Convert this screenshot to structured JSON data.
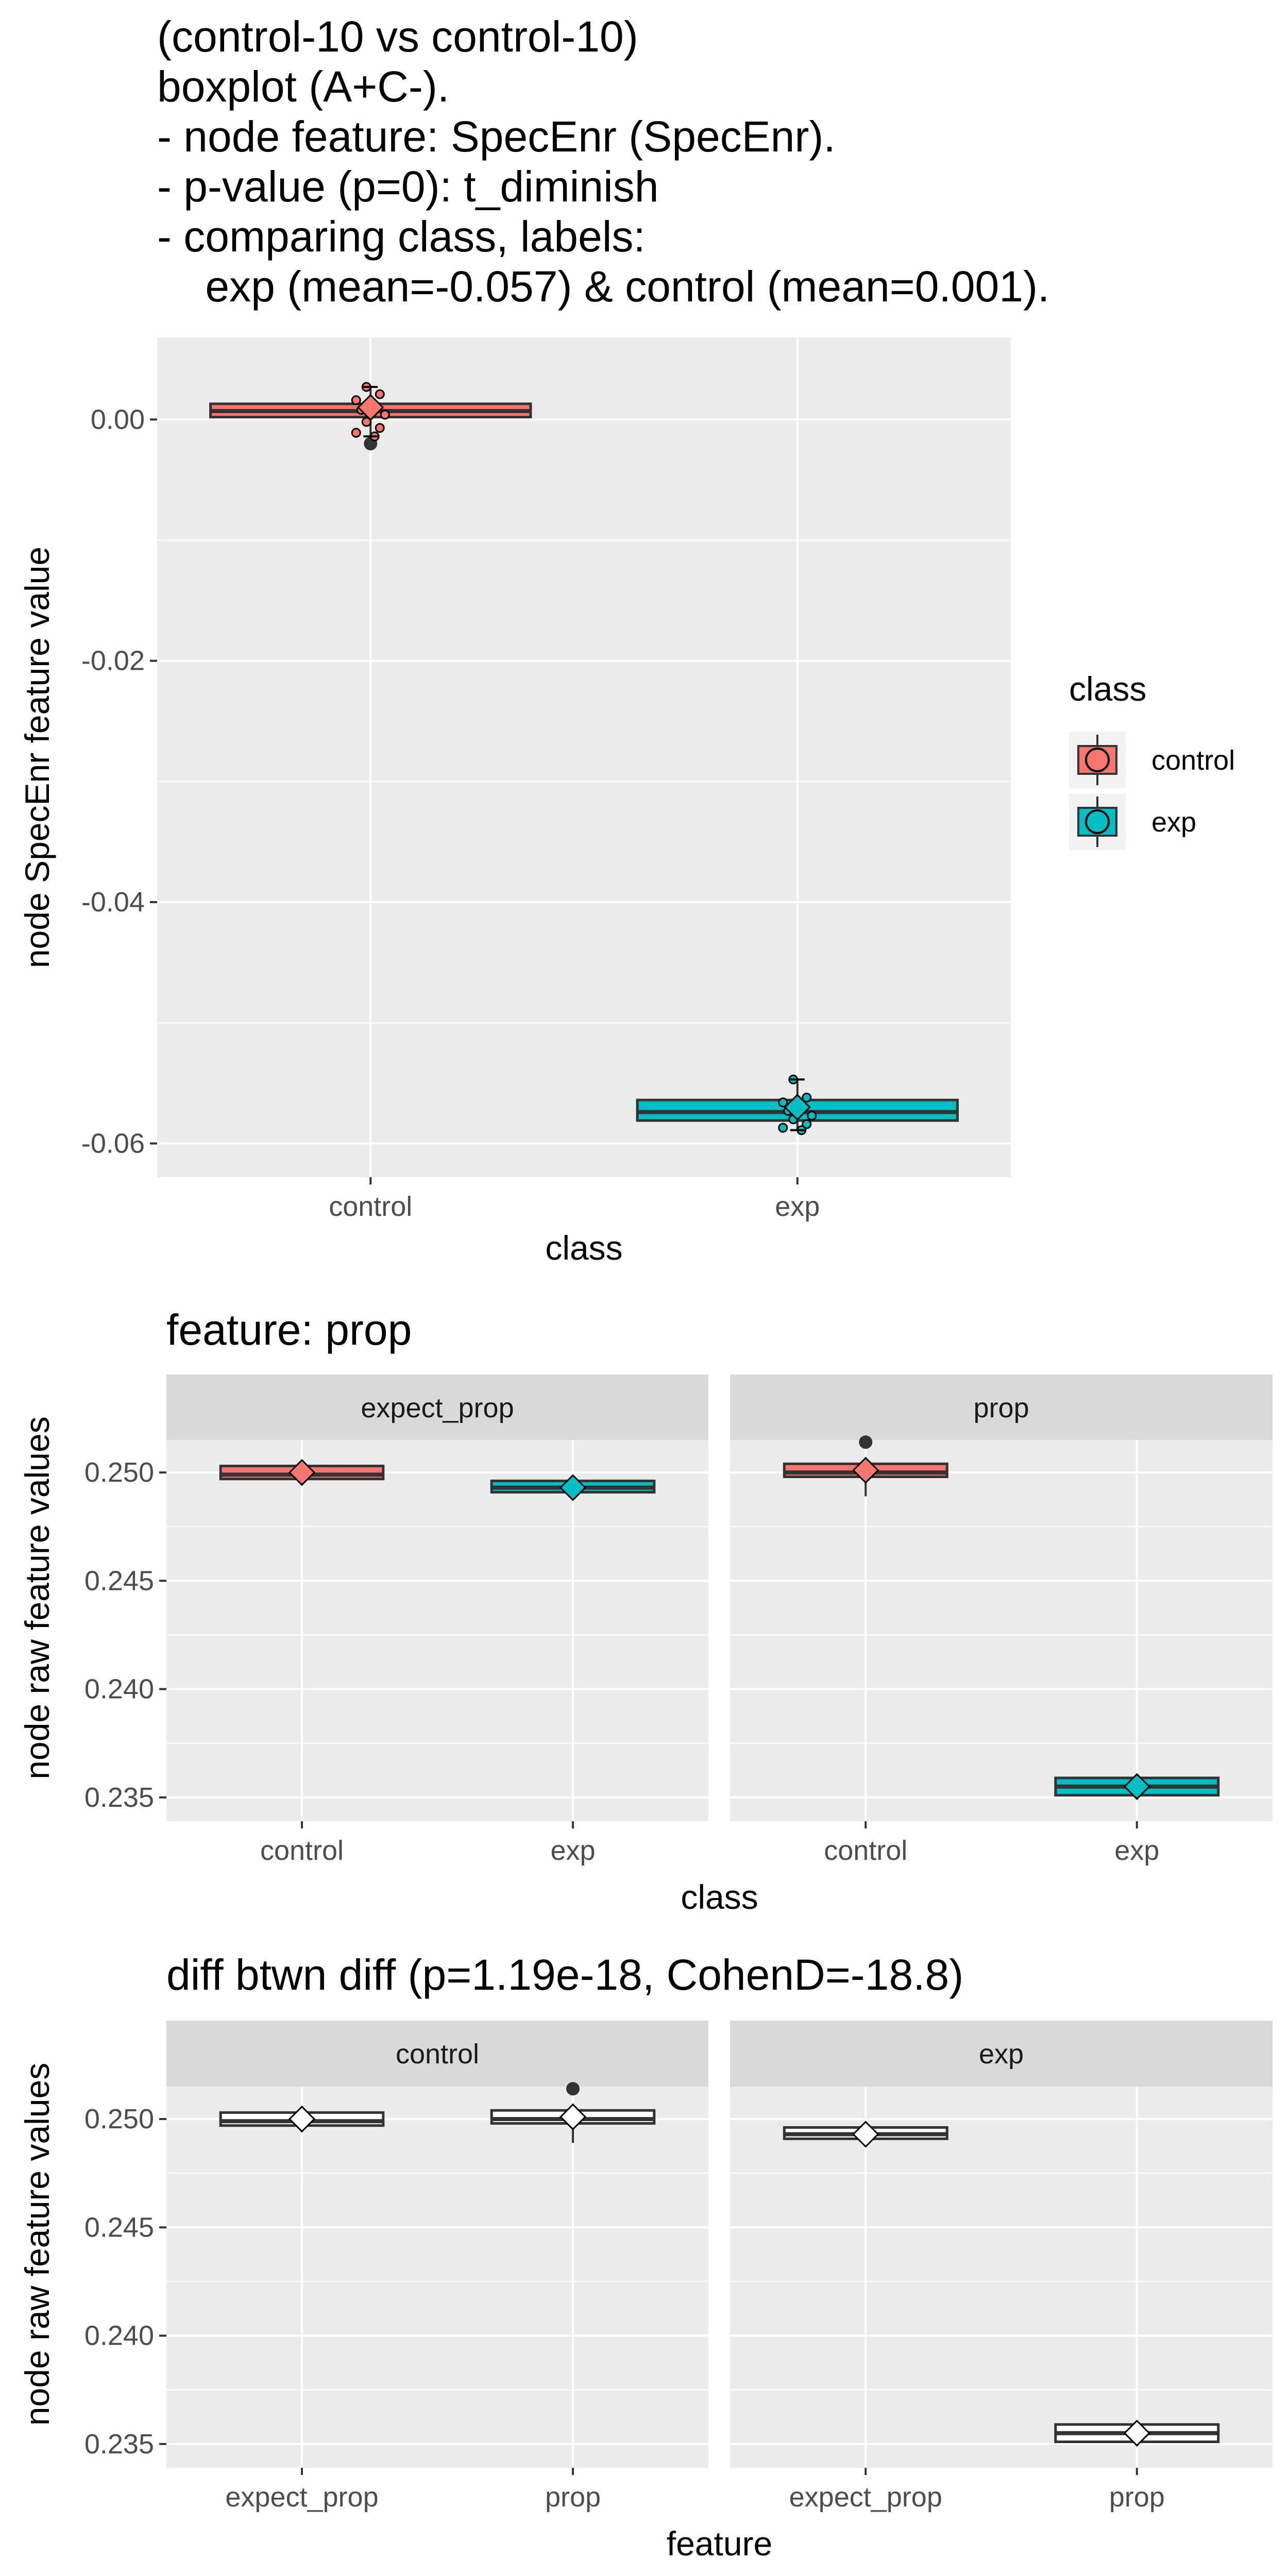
{
  "colors": {
    "control": "#f8766d",
    "exp": "#00bfc4",
    "panel": "#ebebeb",
    "strip": "#d9d9d9",
    "grid": "#ffffff",
    "plain_box": "#ffffff"
  },
  "header": {
    "lines": [
      "(control-10 vs control-10)",
      "boxplot (A+C-).",
      "- node feature: SpecEnr (SpecEnr).",
      "- p-value (p=0): t_diminish",
      "- comparing class, labels:",
      "    exp (mean=-0.057) & control (mean=0.001)."
    ]
  },
  "legend": {
    "title": "class",
    "items": [
      {
        "label": "control",
        "color": "#f8766d"
      },
      {
        "label": "exp",
        "color": "#00bfc4"
      }
    ]
  },
  "plot2_title": "feature: prop",
  "plot3_title": "diff btwn diff (p=1.19e-18, CohenD=-18.8)",
  "chart_data": [
    {
      "type": "boxplot",
      "title": "",
      "xlabel": "class",
      "ylabel": "node SpecEnr feature value",
      "ylim": [
        -0.0628,
        0.0068
      ],
      "yticks": [
        0.0,
        -0.02,
        -0.04,
        -0.06
      ],
      "ytick_labels": [
        "0.00",
        "-0.02",
        "-0.04",
        "-0.06"
      ],
      "categories": [
        "control",
        "exp"
      ],
      "boxes": [
        {
          "category": "control",
          "q1": 0.0002,
          "median": 0.0007,
          "q3": 0.0013,
          "whisker_low": -0.0014,
          "whisker_high": 0.0027,
          "mean": 0.001,
          "outliers": [
            -0.002
          ],
          "points": [
            0.0027,
            0.0021,
            0.0016,
            0.0011,
            0.0008,
            0.0004,
            -0.0002,
            -0.0007,
            -0.0011,
            -0.0014
          ]
        },
        {
          "category": "exp",
          "q1": -0.0581,
          "median": -0.0574,
          "q3": -0.0564,
          "whisker_low": -0.0589,
          "whisker_high": -0.0547,
          "mean": -0.057,
          "outliers": [],
          "points": [
            -0.0547,
            -0.0562,
            -0.0566,
            -0.0569,
            -0.0573,
            -0.0577,
            -0.058,
            -0.0584,
            -0.0587,
            -0.0589
          ]
        }
      ]
    },
    {
      "type": "boxplot",
      "title": "feature: prop",
      "xlabel": "class",
      "ylabel": "node raw feature values",
      "ylim": [
        0.2339,
        0.2515
      ],
      "yticks": [
        0.235,
        0.24,
        0.245,
        0.25
      ],
      "ytick_labels": [
        "0.235",
        "0.240",
        "0.245",
        "0.250"
      ],
      "facets": [
        {
          "strip": "expect_prop",
          "categories": [
            "control",
            "exp"
          ],
          "boxes": [
            {
              "category": "control",
              "q1": 0.2497,
              "median": 0.2499,
              "q3": 0.2503,
              "whisker_low": 0.2494,
              "whisker_high": 0.2506,
              "mean": 0.25,
              "outliers": []
            },
            {
              "category": "exp",
              "q1": 0.2491,
              "median": 0.2493,
              "q3": 0.2496,
              "whisker_low": 0.2489,
              "whisker_high": 0.2497,
              "mean": 0.2493,
              "outliers": []
            }
          ]
        },
        {
          "strip": "prop",
          "categories": [
            "control",
            "exp"
          ],
          "boxes": [
            {
              "category": "control",
              "q1": 0.2498,
              "median": 0.25,
              "q3": 0.2504,
              "whisker_low": 0.2489,
              "whisker_high": 0.2507,
              "mean": 0.2501,
              "outliers": [
                0.2514
              ]
            },
            {
              "category": "exp",
              "q1": 0.2351,
              "median": 0.2355,
              "q3": 0.2359,
              "whisker_low": 0.2349,
              "whisker_high": 0.236,
              "mean": 0.2355,
              "outliers": []
            }
          ]
        }
      ]
    },
    {
      "type": "boxplot",
      "title": "diff btwn diff (p=1.19e-18, CohenD=-18.8)",
      "xlabel": "feature",
      "ylabel": "node raw feature values",
      "ylim": [
        0.2339,
        0.2515
      ],
      "yticks": [
        0.235,
        0.24,
        0.245,
        0.25
      ],
      "ytick_labels": [
        "0.235",
        "0.240",
        "0.245",
        "0.250"
      ],
      "facets": [
        {
          "strip": "control",
          "categories": [
            "expect_prop",
            "prop"
          ],
          "boxes": [
            {
              "category": "expect_prop",
              "q1": 0.2497,
              "median": 0.2499,
              "q3": 0.2503,
              "whisker_low": 0.2494,
              "whisker_high": 0.2506,
              "mean": 0.25,
              "outliers": []
            },
            {
              "category": "prop",
              "q1": 0.2498,
              "median": 0.25,
              "q3": 0.2504,
              "whisker_low": 0.2489,
              "whisker_high": 0.2507,
              "mean": 0.2501,
              "outliers": [
                0.2514
              ]
            }
          ]
        },
        {
          "strip": "exp",
          "categories": [
            "expect_prop",
            "prop"
          ],
          "boxes": [
            {
              "category": "expect_prop",
              "q1": 0.2491,
              "median": 0.2493,
              "q3": 0.2496,
              "whisker_low": 0.2489,
              "whisker_high": 0.2497,
              "mean": 0.2493,
              "outliers": []
            },
            {
              "category": "prop",
              "q1": 0.2351,
              "median": 0.2355,
              "q3": 0.2359,
              "whisker_low": 0.2349,
              "whisker_high": 0.236,
              "mean": 0.2355,
              "outliers": []
            }
          ]
        }
      ]
    }
  ]
}
